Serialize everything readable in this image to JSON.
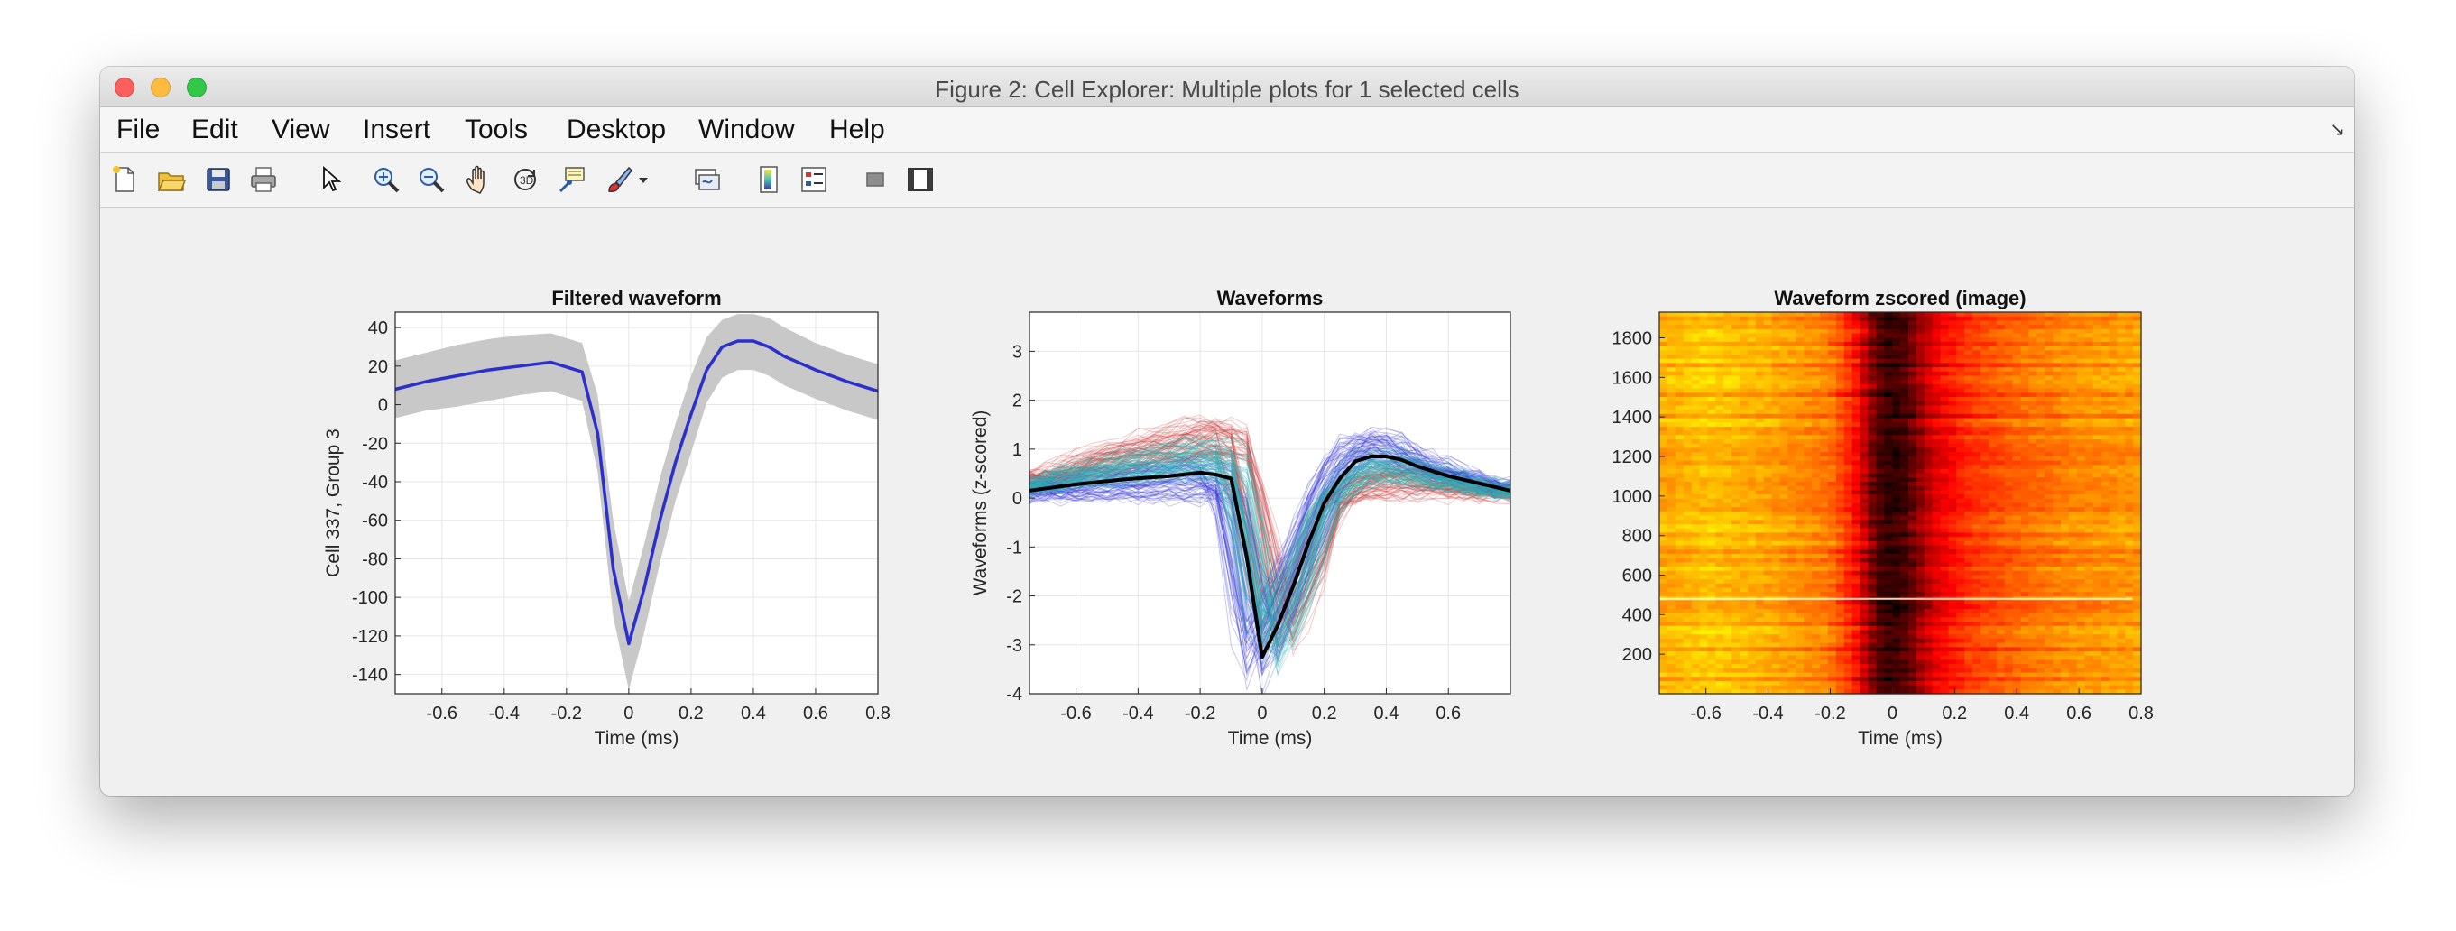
{
  "window": {
    "title": "Figure 2: Cell Explorer: Multiple plots for 1 selected cells"
  },
  "menu": {
    "items": [
      "File",
      "Edit",
      "View",
      "Insert",
      "Tools",
      "Desktop",
      "Window",
      "Help"
    ]
  },
  "toolbar": {
    "icons": [
      "new-figure-icon",
      "open-file-icon",
      "save-icon",
      "print-icon",
      "pointer-icon",
      "zoom-in-icon",
      "zoom-out-icon",
      "pan-icon",
      "rotate-3d-icon",
      "data-cursor-icon",
      "brush-icon",
      "brush-dropdown-icon",
      "link-plot-icon",
      "colorbar-icon",
      "legend-icon",
      "hide-plot-tools-icon",
      "show-plot-tools-icon"
    ]
  },
  "chart_data": [
    {
      "type": "line",
      "title": "Filtered waveform",
      "xlabel": "Time (ms)",
      "ylabel": "Cell 337, Group 3",
      "xlim": [
        -0.75,
        0.8
      ],
      "ylim": [
        -150,
        48
      ],
      "xticks": [
        -0.6,
        -0.4,
        -0.2,
        0,
        0.2,
        0.4,
        0.6,
        0.8
      ],
      "xticklabels": [
        "-0.6",
        "-0.4",
        "-0.2",
        "0",
        "0.2",
        "0.4",
        "0.6",
        "0.8"
      ],
      "yticks": [
        40,
        20,
        0,
        -20,
        -40,
        -60,
        -80,
        -100,
        -120,
        -140
      ],
      "yticklabels": [
        "40",
        "20",
        "0",
        "-20",
        "-40",
        "-60",
        "-80",
        "-100",
        "-120",
        "-140"
      ],
      "grid": true,
      "colors": {
        "mean": "#2b2fcc",
        "band": "#c8c8c8"
      },
      "series": [
        {
          "x": [
            -0.75,
            -0.65,
            -0.55,
            -0.45,
            -0.35,
            -0.25,
            -0.15,
            -0.1,
            -0.05,
            0,
            0.05,
            0.1,
            0.15,
            0.2,
            0.25,
            0.3,
            0.35,
            0.4,
            0.45,
            0.5,
            0.6,
            0.7,
            0.8
          ],
          "y": [
            8,
            12,
            15,
            18,
            20,
            22,
            17,
            -15,
            -85,
            -124,
            -95,
            -60,
            -30,
            -5,
            18,
            30,
            33,
            33,
            30,
            25,
            18,
            12,
            7
          ],
          "upper": [
            23,
            27,
            31,
            34,
            36,
            37,
            32,
            5,
            -60,
            -102,
            -72,
            -38,
            -10,
            15,
            35,
            44,
            47,
            47,
            45,
            40,
            32,
            26,
            21
          ],
          "lower": [
            -7,
            -3,
            -1,
            2,
            5,
            7,
            2,
            -35,
            -110,
            -148,
            -118,
            -82,
            -50,
            -25,
            1,
            14,
            18,
            18,
            15,
            10,
            3,
            -3,
            -8
          ]
        }
      ]
    },
    {
      "type": "line",
      "title": "Waveforms",
      "xlabel": "Time (ms)",
      "ylabel": "Waveforms (z-scored)",
      "xlim": [
        -0.75,
        0.8
      ],
      "ylim": [
        -4,
        3.8
      ],
      "xticks": [
        -0.6,
        -0.4,
        -0.2,
        0,
        0.2,
        0.4,
        0.6
      ],
      "xticklabels": [
        "-0.6",
        "-0.4",
        "-0.2",
        "0",
        "0.2",
        "0.4",
        "0.6"
      ],
      "yticks": [
        3,
        2,
        1,
        0,
        -1,
        -2,
        -3,
        -4
      ],
      "yticklabels": [
        "3",
        "2",
        "1",
        "0",
        "-1",
        "-2",
        "-3",
        "-4"
      ],
      "grid": true,
      "colors": {
        "mean": "#000000",
        "red": "#d23c3c",
        "cyan": "#2ab5b5",
        "blue": "#3a3ad8"
      },
      "series": [
        {
          "name": "",
          "x": [
            -0.75,
            -0.6,
            -0.45,
            -0.3,
            -0.2,
            -0.15,
            -0.1,
            -0.05,
            0,
            0.05,
            0.1,
            0.15,
            0.2,
            0.25,
            0.3,
            0.35,
            0.4,
            0.45,
            0.5,
            0.6,
            0.7,
            0.8
          ],
          "y": [
            0.15,
            0.28,
            0.38,
            0.45,
            0.52,
            0.48,
            0.4,
            -1.2,
            -3.25,
            -2.6,
            -1.8,
            -0.9,
            -0.1,
            0.4,
            0.75,
            0.85,
            0.85,
            0.78,
            0.65,
            0.45,
            0.3,
            0.15
          ]
        }
      ]
    },
    {
      "type": "heatmap",
      "title": "Waveform zscored (image)",
      "xlabel": "Time (ms)",
      "xlim": [
        -0.75,
        0.8
      ],
      "ylim": [
        0,
        1930
      ],
      "xticks": [
        -0.6,
        -0.4,
        -0.2,
        0,
        0.2,
        0.4,
        0.6,
        0.8
      ],
      "xticklabels": [
        "-0.6",
        "-0.4",
        "-0.2",
        "0",
        "0.2",
        "0.4",
        "0.6",
        "0.8"
      ],
      "yticks": [
        1800,
        1600,
        1400,
        1200,
        1000,
        800,
        600,
        400,
        200
      ],
      "yticklabels": [
        "1800",
        "1600",
        "1400",
        "1200",
        "1000",
        "800",
        "600",
        "400",
        "200"
      ],
      "colormap": "hot",
      "profile": {
        "x": [
          -0.75,
          -0.6,
          -0.4,
          -0.2,
          -0.12,
          -0.05,
          0,
          0.05,
          0.1,
          0.15,
          0.25,
          0.4,
          0.6,
          0.8
        ],
        "z": [
          0.62,
          0.66,
          0.62,
          0.55,
          0.4,
          0.12,
          0.06,
          0.12,
          0.25,
          0.35,
          0.45,
          0.52,
          0.58,
          0.6
        ]
      }
    }
  ]
}
